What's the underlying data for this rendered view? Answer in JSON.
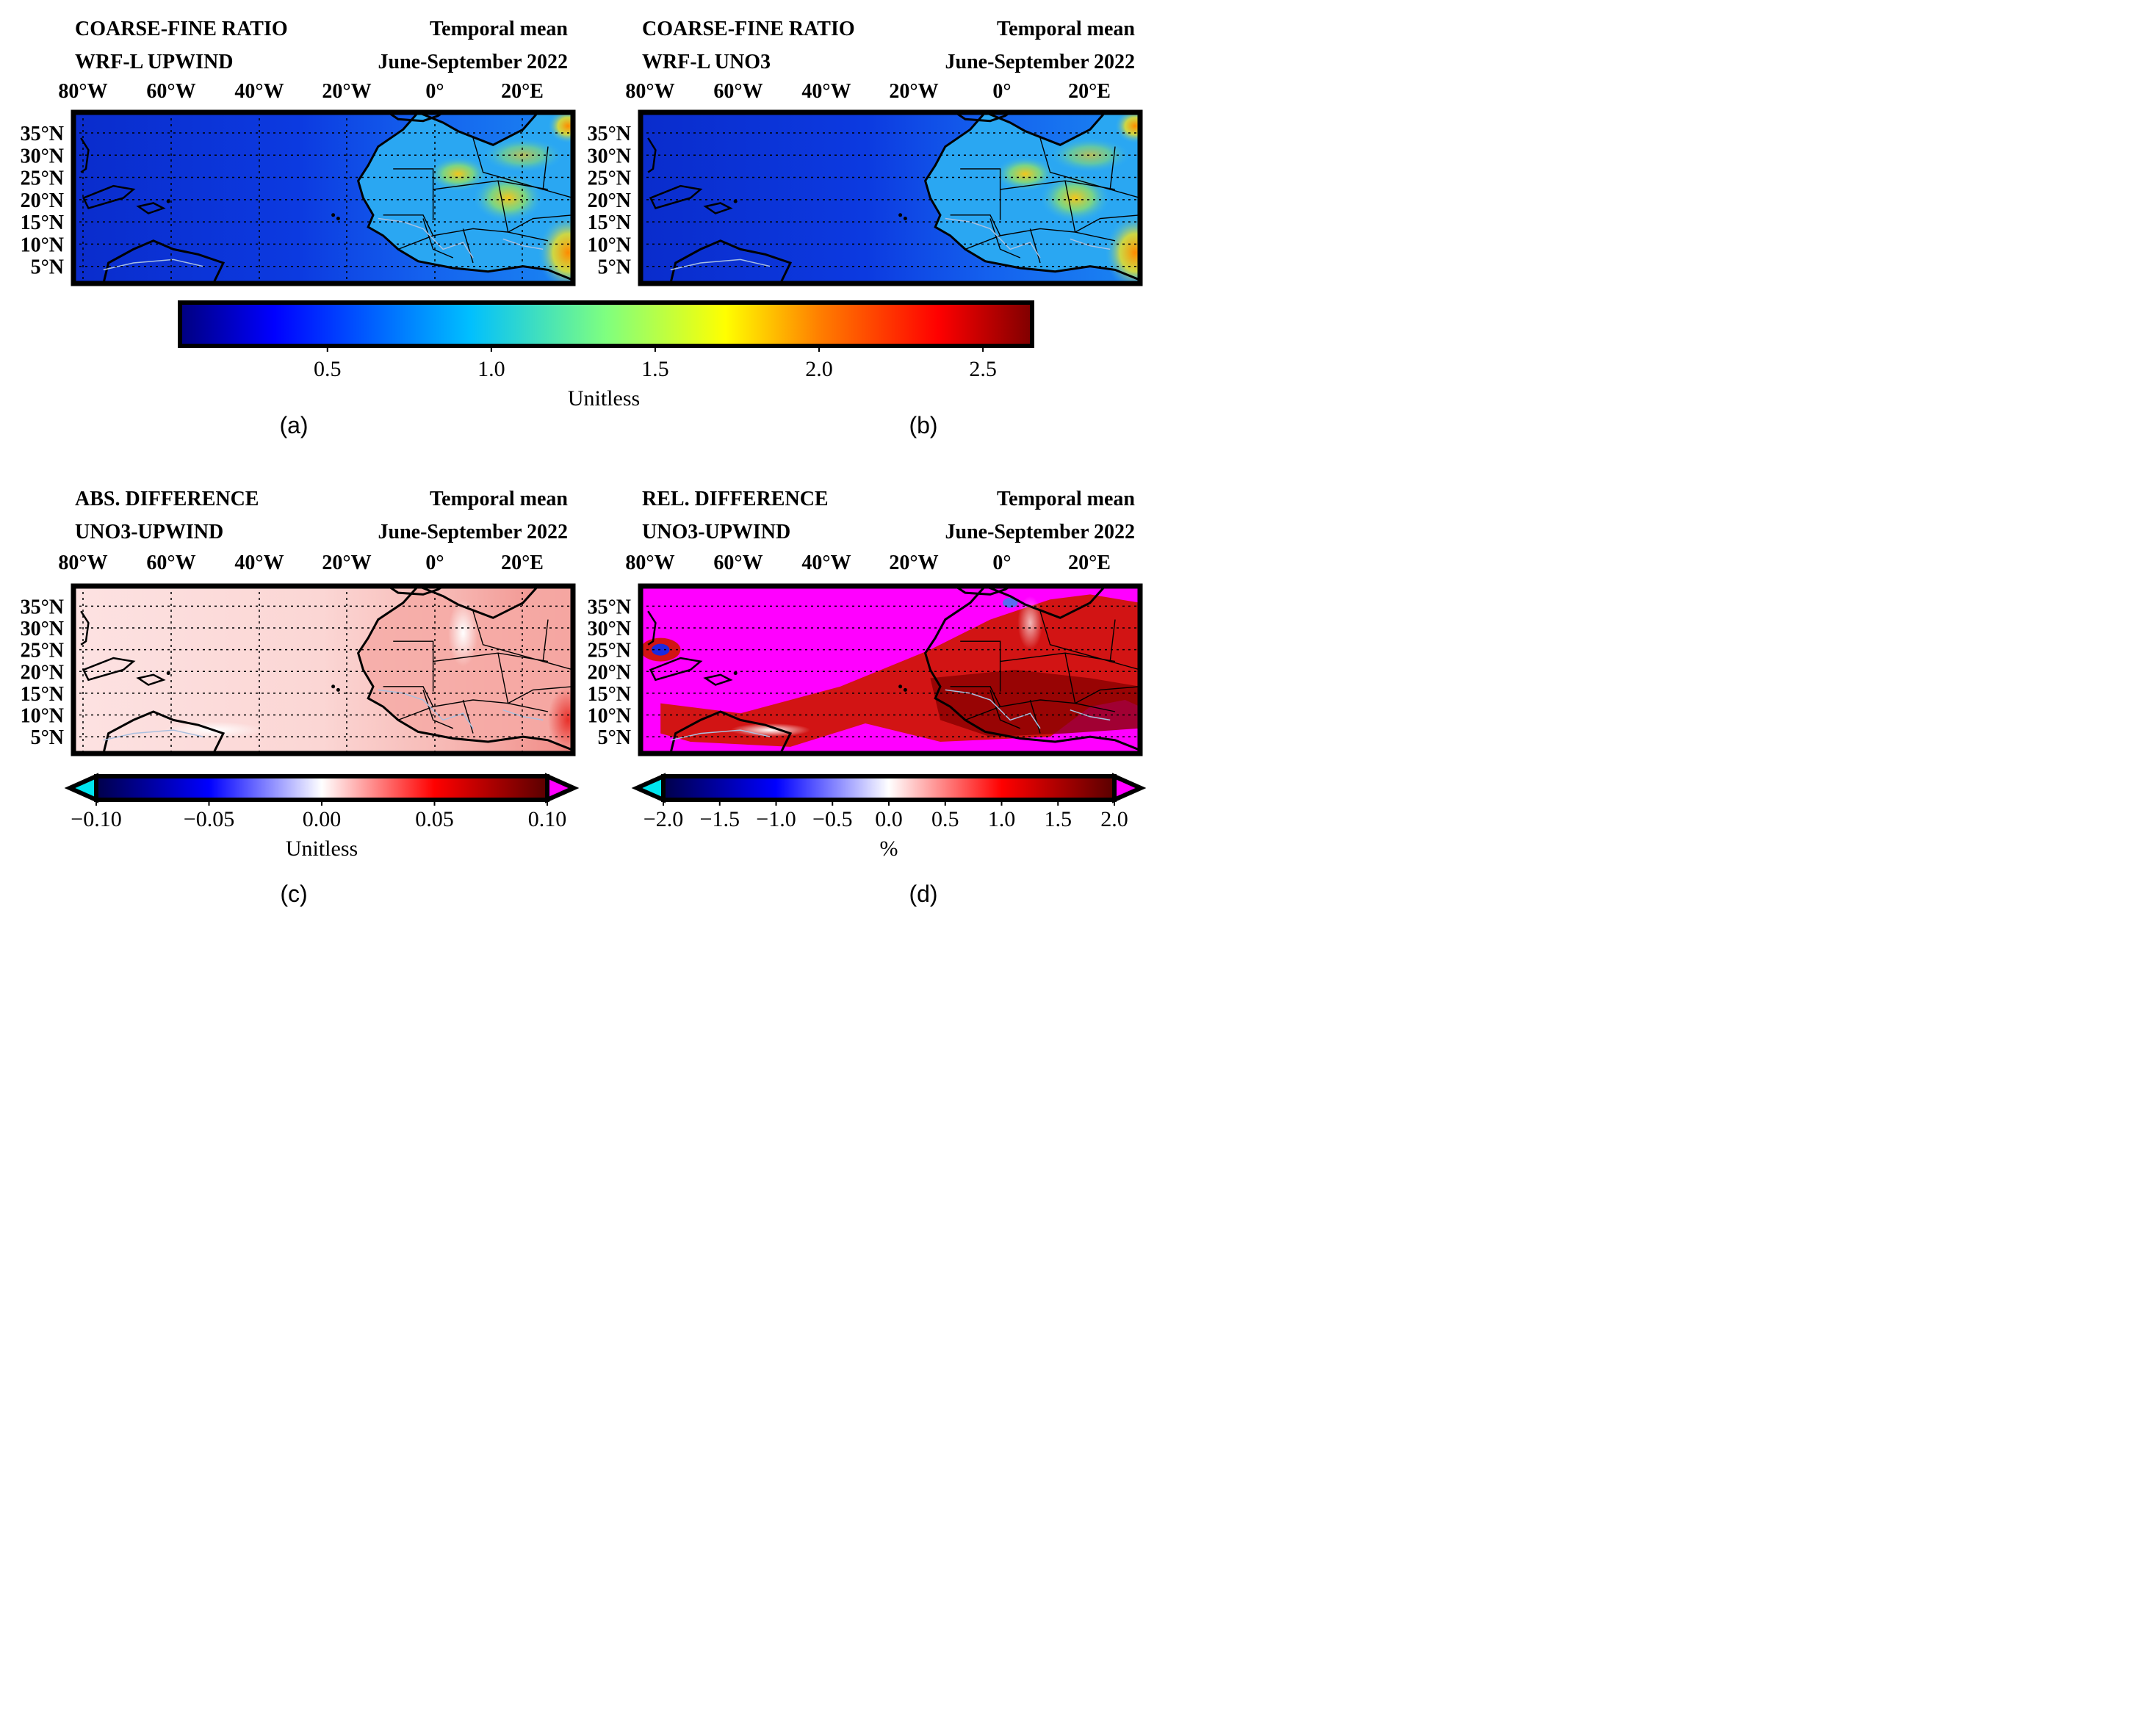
{
  "panels": [
    {
      "id": "a",
      "title_left_1": "COARSE-FINE RATIO",
      "title_left_2": "WRF-L UPWIND",
      "title_right_1": "Temporal mean",
      "title_right_2": "June-September 2022",
      "caption": "(a)",
      "style": "ratio"
    },
    {
      "id": "b",
      "title_left_1": "COARSE-FINE RATIO",
      "title_left_2": "WRF-L UNO3",
      "title_right_1": "Temporal mean",
      "title_right_2": "June-September 2022",
      "caption": "(b)",
      "style": "ratio"
    },
    {
      "id": "c",
      "title_left_1": "ABS. DIFFERENCE",
      "title_left_2": "UNO3-UPWIND",
      "title_right_1": "Temporal mean",
      "title_right_2": "June-September 2022",
      "caption": "(c)",
      "style": "abs"
    },
    {
      "id": "d",
      "title_left_1": "REL. DIFFERENCE",
      "title_left_2": "UNO3-UPWIND",
      "title_right_1": "Temporal mean",
      "title_right_2": "June-September 2022",
      "caption": "(d)",
      "style": "rel"
    }
  ],
  "map_axes": {
    "lon_labels": [
      "80°W",
      "60°W",
      "40°W",
      "20°W",
      "0°",
      "20°E"
    ],
    "lat_labels": [
      "35°N",
      "30°N",
      "25°N",
      "20°N",
      "15°N",
      "10°N",
      "5°N"
    ]
  },
  "colorbars": {
    "ratio": {
      "ticks": [
        "0.5",
        "1.0",
        "1.5",
        "2.0",
        "2.5"
      ],
      "label": "Unitless",
      "range": [
        0.05,
        2.65
      ],
      "extend": "neither",
      "colormap": [
        "#00007f",
        "#0000ff",
        "#00bfff",
        "#7fff7f",
        "#ffff00",
        "#ff7f00",
        "#ff0000",
        "#7f0000"
      ]
    },
    "abs": {
      "ticks": [
        "−0.10",
        "−0.05",
        "0.00",
        "0.05",
        "0.10"
      ],
      "label": "Unitless",
      "range": [
        -0.1,
        0.1
      ],
      "extend": "both",
      "under_color": "#00e5ee",
      "over_color": "#ff00ff",
      "colormap": [
        "#00004a",
        "#0000ff",
        "#ffffff",
        "#ff0000",
        "#5a0000"
      ]
    },
    "rel": {
      "ticks": [
        "−2.0",
        "−1.5",
        "−1.0",
        "−0.5",
        "0.0",
        "0.5",
        "1.0",
        "1.5",
        "2.0"
      ],
      "label": "%",
      "range": [
        -2.0,
        2.0
      ],
      "extend": "both",
      "under_color": "#00e5ee",
      "over_color": "#ff00ff",
      "colormap": [
        "#00004a",
        "#0000ff",
        "#ffffff",
        "#ff0000",
        "#5a0000"
      ]
    }
  }
}
